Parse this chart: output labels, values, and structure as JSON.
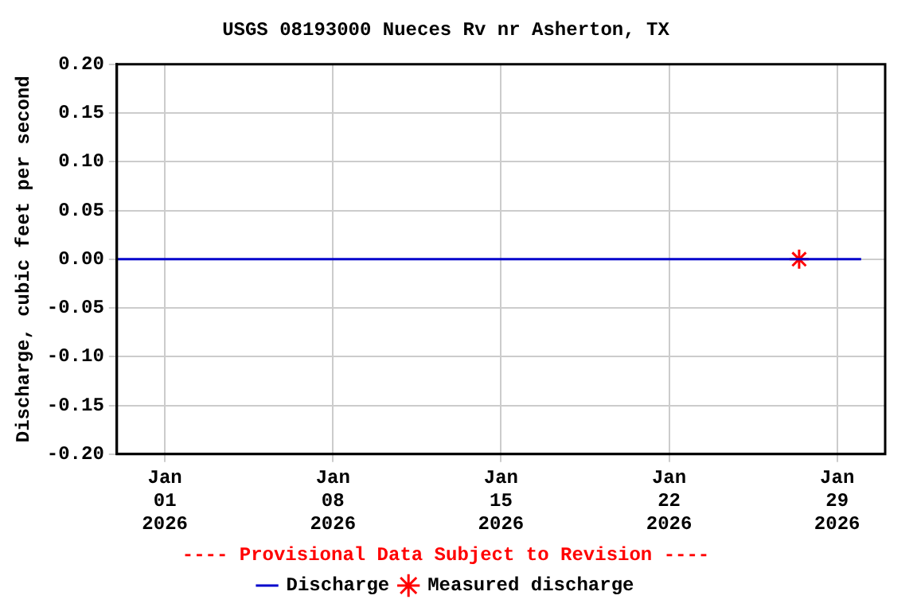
{
  "chart_data": {
    "type": "line",
    "title": "USGS 08193000 Nueces Rv nr Asherton, TX",
    "ylabel": "Discharge, cubic feet per second",
    "annotations": [
      "---- Provisional Data Subject to Revision ----"
    ],
    "series": [
      {
        "name": "Discharge",
        "type": "line",
        "color": "#0000cc",
        "x": [
          "2025-12-30T00:00",
          "2026-01-30T00:00"
        ],
        "values": [
          0,
          0
        ]
      },
      {
        "name": "Measured discharge",
        "type": "scatter",
        "marker": "cross",
        "color": "#ff0000",
        "x": [
          "2026-01-27T10:00"
        ],
        "values": [
          0
        ]
      }
    ],
    "xlim": [
      "2025-12-30",
      "2026-01-31"
    ],
    "xticks": [
      {
        "value": "2026-01-01",
        "label": "Jan 01 2026"
      },
      {
        "value": "2026-01-08",
        "label": "Jan 08 2026"
      },
      {
        "value": "2026-01-15",
        "label": "Jan 15 2026"
      },
      {
        "value": "2026-01-22",
        "label": "Jan 22 2026"
      },
      {
        "value": "2026-01-29",
        "label": "Jan 29 2026"
      }
    ],
    "ylim": [
      -0.2,
      0.2
    ],
    "yticks": [
      {
        "value": -0.2,
        "label": "-0.20"
      },
      {
        "value": -0.15,
        "label": "-0.15"
      },
      {
        "value": -0.1,
        "label": "-0.10"
      },
      {
        "value": -0.05,
        "label": "-0.05"
      },
      {
        "value": 0,
        "label": "0.00"
      },
      {
        "value": 0.05,
        "label": "0.05"
      },
      {
        "value": 0.1,
        "label": "0.10"
      },
      {
        "value": 0.15,
        "label": "0.15"
      },
      {
        "value": 0.2,
        "label": "0.20"
      }
    ],
    "grid": true,
    "legend": "bottom",
    "marker": "none",
    "line_style": "solid"
  }
}
